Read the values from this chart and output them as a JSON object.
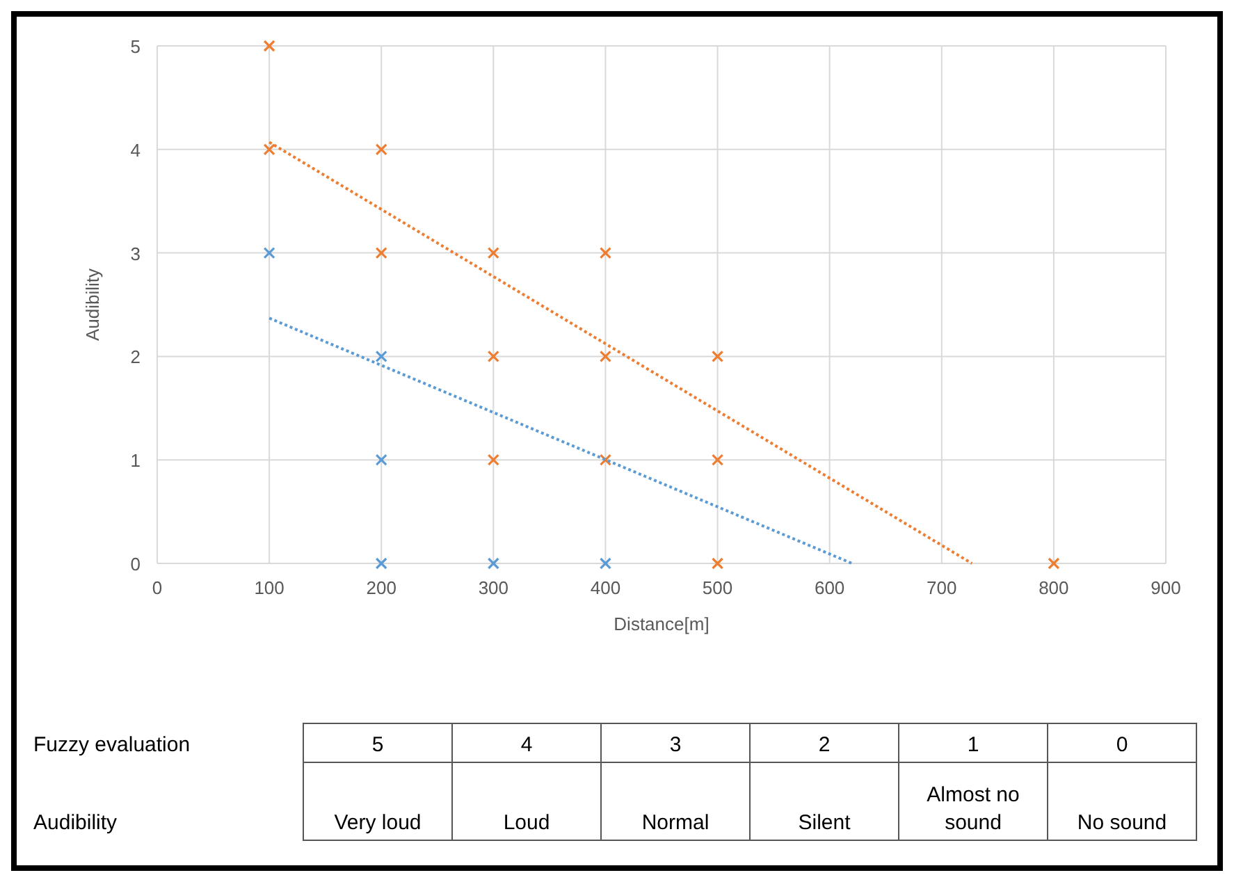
{
  "chart_data": {
    "type": "scatter",
    "xlabel": "Distance[m]",
    "ylabel": "Audibility",
    "xlim": [
      0,
      900
    ],
    "xticks": [
      0,
      100,
      200,
      300,
      400,
      500,
      600,
      700,
      800,
      900
    ],
    "ylim": [
      0,
      5
    ],
    "yticks": [
      0,
      1,
      2,
      3,
      4,
      5
    ],
    "grid": true,
    "marker": "cross",
    "series": [
      {
        "color": "#5b9bd5",
        "x": [
          100,
          200,
          200,
          200,
          300,
          400
        ],
        "values": [
          3,
          2,
          1,
          0,
          0,
          0
        ]
      },
      {
        "color": "#ed7d31",
        "x": [
          100,
          100,
          200,
          200,
          300,
          400,
          300,
          400,
          500,
          300,
          400,
          500,
          500,
          800
        ],
        "values": [
          5,
          4,
          4,
          3,
          3,
          3,
          2,
          2,
          2,
          1,
          1,
          1,
          0,
          0
        ]
      },
      {
        "type": "line",
        "color": "#5b9bd5",
        "marker": "none",
        "line_style": "dotted",
        "x": [
          100,
          620
        ],
        "values": [
          2.37,
          0
        ]
      },
      {
        "type": "line",
        "color": "#ed7d31",
        "marker": "none",
        "line_style": "dotted",
        "x": [
          100,
          727
        ],
        "values": [
          4.07,
          0
        ]
      }
    ],
    "annotations": [
      "Fuzzy evaluation",
      "Audibility",
      "5",
      "Very loud",
      "4",
      "Loud",
      "3",
      "Normal",
      "2",
      "Silent",
      "1",
      "Almost no sound",
      "0",
      "No sound"
    ]
  }
}
